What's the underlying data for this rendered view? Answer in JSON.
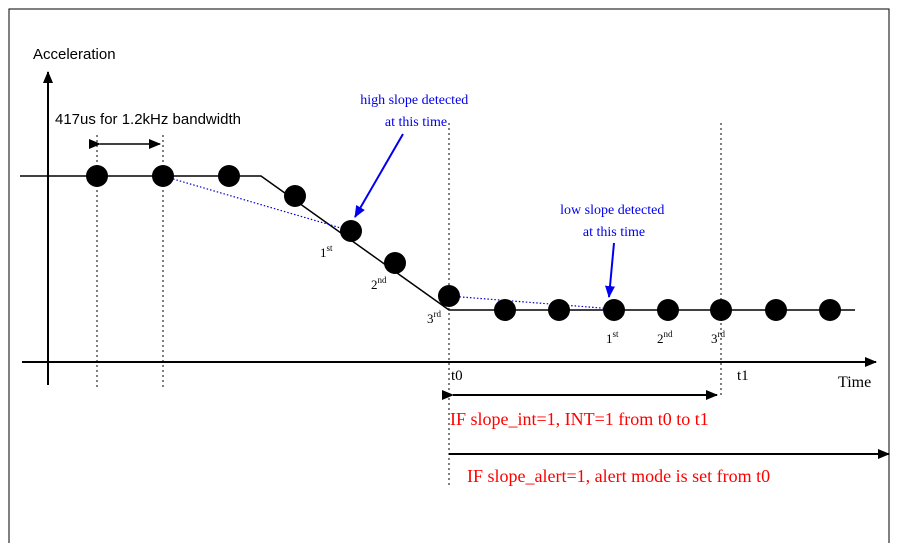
{
  "axes": {
    "y_label": "Acceleration",
    "x_label": "Time"
  },
  "bandwidth_note": "417us for 1.2kHz bandwidth",
  "callouts": {
    "high_slope": [
      "high slope detected",
      "at this time"
    ],
    "low_slope": [
      "low slope detected",
      "at this time"
    ]
  },
  "sample_labels": {
    "first_group": [
      {
        "num": "1",
        "sup": "st"
      },
      {
        "num": "2",
        "sup": "nd"
      },
      {
        "num": "3",
        "sup": "rd"
      }
    ],
    "second_group": [
      {
        "num": "1",
        "sup": "st"
      },
      {
        "num": "2",
        "sup": "nd"
      },
      {
        "num": "3",
        "sup": "rd"
      }
    ]
  },
  "time_marks": {
    "t0": "t0",
    "t1": "t1"
  },
  "notes": {
    "slope_int": "IF slope_int=1, INT=1 from t0 to t1",
    "slope_alert": "IF slope_alert=1, alert mode is set from t0"
  },
  "colors": {
    "callout": "#0000ee",
    "note": "#ff0000",
    "line": "#000000",
    "dotted_link": "#0000cc"
  }
}
